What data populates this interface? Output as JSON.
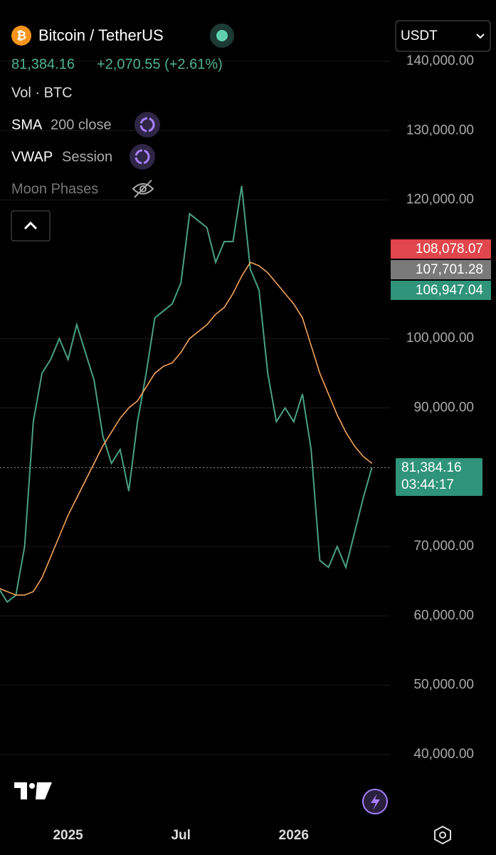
{
  "header": {
    "title": "Bitcoin / TetherUS",
    "price": "81,384.16",
    "change": "+2,070.55 (+2.61%)",
    "volume": "Vol · BTC",
    "indicators": [
      {
        "name": "SMA",
        "params": "200 close"
      },
      {
        "name": "VWAP",
        "params": "Session"
      },
      {
        "name": "Moon Phases"
      }
    ],
    "currency": "USDT"
  },
  "price_tags": [
    {
      "label": "108,078.07",
      "color": "#e0464b"
    },
    {
      "label": "107,701.28",
      "color": "#7a7a7a"
    },
    {
      "label": "106,947.04",
      "color": "#2f9479"
    }
  ],
  "last_price": {
    "label": "81,384.16",
    "countdown": "03:44:17",
    "color": "#2f9479"
  },
  "chart_data": {
    "type": "line",
    "categories": [
      null,
      null,
      null,
      null,
      null,
      null,
      null,
      null,
      "2025",
      null,
      null,
      null,
      null,
      null,
      null,
      null,
      null,
      null,
      null,
      null,
      null,
      "Jul",
      null,
      null,
      null,
      null,
      null,
      null,
      null,
      null,
      null,
      null,
      null,
      null,
      "2026",
      null,
      null,
      null,
      null,
      null,
      null,
      null,
      null,
      null
    ],
    "series": [
      {
        "color": "#4aa184",
        "values": [
          64000,
          62000,
          63000,
          70000,
          88000,
          95000,
          97000,
          100000,
          97000,
          102000,
          98000,
          94000,
          86000,
          82000,
          84000,
          78000,
          88000,
          95000,
          103000,
          104000,
          105000,
          108000,
          118000,
          117000,
          116000,
          111000,
          114000,
          114000,
          122000,
          110000,
          107000,
          95000,
          88000,
          90000,
          88000,
          92000,
          84000,
          68000,
          67000,
          70000,
          67000,
          72000,
          77000,
          81384.16
        ]
      },
      {
        "color": "#f5a25b",
        "values": [
          64000,
          63500,
          63000,
          63000,
          63500,
          65500,
          68500,
          71500,
          74500,
          77000,
          79500,
          82000,
          84500,
          86500,
          88500,
          90000,
          91000,
          93000,
          95000,
          96000,
          96500,
          98000,
          100000,
          101000,
          102000,
          103500,
          104500,
          106500,
          109000,
          111000,
          110500,
          109500,
          108000,
          106500,
          105000,
          103000,
          99000,
          95000,
          92000,
          89000,
          86500,
          84500,
          83000,
          82000
        ]
      }
    ],
    "ylim": [
      31160,
      148840
    ],
    "yticks": [
      {
        "value": 140000,
        "label": "140,000.00"
      },
      {
        "value": 130000,
        "label": "130,000.00"
      },
      {
        "value": 120000,
        "label": "120,000.00"
      },
      {
        "value": 100000,
        "label": "100,000.00"
      },
      {
        "value": 90000,
        "label": "90,000.00"
      },
      {
        "value": 70000,
        "label": "70,000.00"
      },
      {
        "value": 60000,
        "label": "60,000.00"
      },
      {
        "value": 50000,
        "label": "50,000.00"
      },
      {
        "value": 40000,
        "label": "40,000.00"
      }
    ],
    "grid": true
  }
}
